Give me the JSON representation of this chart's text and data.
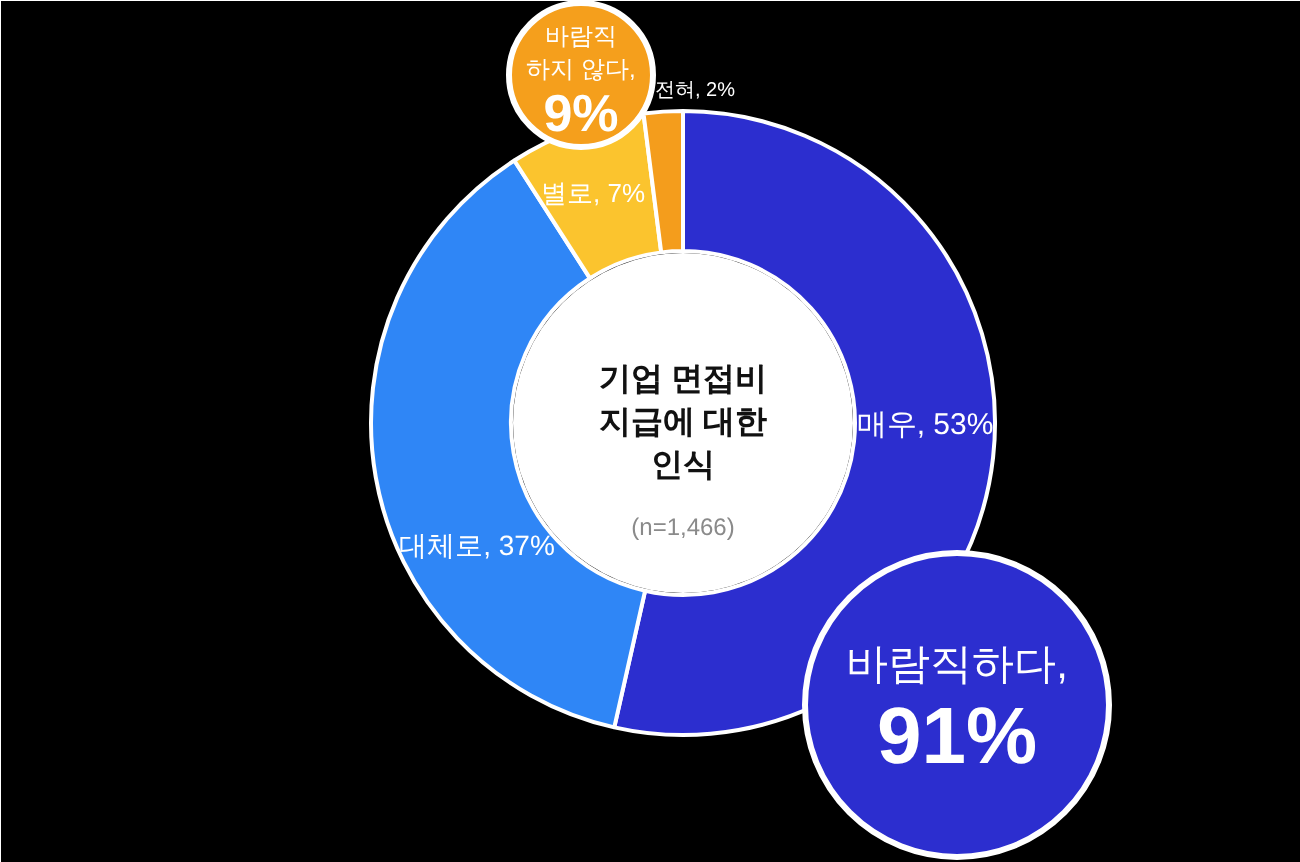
{
  "chart_data": {
    "type": "donut",
    "title": "기업 면접비\n지급에 대한\n인식",
    "subtitle": "(n=1,466)",
    "categories": [
      "매우",
      "대체로",
      "별로",
      "전혀"
    ],
    "values": [
      53,
      37,
      7,
      2
    ],
    "value_labels": [
      "53%",
      "37%",
      "7%",
      "2%"
    ],
    "colors": [
      "#2c2ecf",
      "#2f86f6",
      "#fbc42e",
      "#f49d1c"
    ],
    "annotations": [
      "바람직\n하지 않다,\n9%",
      "바람직하다,\n91%"
    ]
  }
}
